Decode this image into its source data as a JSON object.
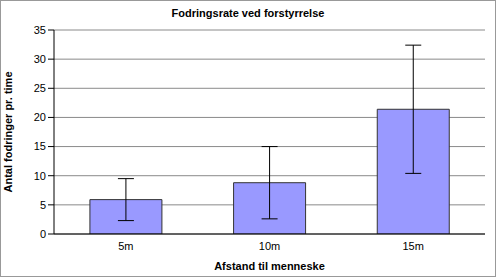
{
  "chart_data": {
    "type": "bar",
    "title": "Fodringsrate ved forstyrrelse",
    "x_label": "Afstand til menneske",
    "y_label": "Antal fodringer pr. time",
    "categories": [
      "5m",
      "10m",
      "15m"
    ],
    "values": [
      5.9,
      8.8,
      21.4
    ],
    "errors": [
      3.6,
      6.2,
      11.0
    ],
    "color": "#9999ff",
    "ylim": [
      0,
      35
    ],
    "yticks": [
      0,
      5,
      10,
      15,
      20,
      25,
      30,
      35
    ],
    "grid": true
  }
}
